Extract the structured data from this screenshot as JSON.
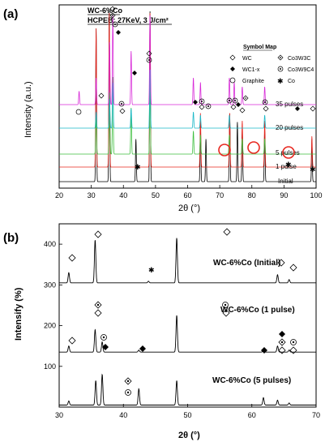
{
  "panel_a": {
    "label": "(a)",
    "title_line1": "WC-6%Co",
    "title_line2": "HCPEB: 27KeV, 3 J/cm²",
    "ylabel": "Intensity (a.u.)",
    "xlabel": "2θ (°)",
    "legend_title": "Symbol Map",
    "legend": [
      {
        "symbol": "diamond-open",
        "text": "WC"
      },
      {
        "symbol": "diamond-dot",
        "text": "Co3W3C"
      },
      {
        "symbol": "diamond-filled",
        "text": "WC1-x"
      },
      {
        "symbol": "circle-dot",
        "text": "Co3W9C4"
      },
      {
        "symbol": "circle-open",
        "text": "Graphite"
      },
      {
        "symbol": "star",
        "text": "Co"
      }
    ],
    "trace_labels": [
      "35 pulses",
      "20 pulses",
      "5 pulses",
      "1 pulse",
      "Initial"
    ]
  },
  "panel_b": {
    "label": "(b)",
    "ylabel": "Intensify (%)",
    "xlabel": "2θ (°)",
    "trace_labels": [
      "WC-6%Co (Initial)",
      "WC-6%Co (1 pulse)",
      "WC-6%Co (5 pulses)"
    ]
  },
  "chart_data": [
    {
      "type": "line",
      "xlim": [
        20,
        100
      ],
      "x_ticks": [
        20,
        30,
        40,
        50,
        60,
        70,
        80,
        90,
        100
      ],
      "series": [
        {
          "name": "Initial",
          "color": "#000000",
          "peaks": [
            [
              31.5,
              0.9
            ],
            [
              35.6,
              1.0
            ],
            [
              43.9,
              0.25
            ],
            [
              48.3,
              1.0
            ],
            [
              64.0,
              0.35
            ],
            [
              65.7,
              0.25
            ],
            [
              73.1,
              0.4
            ],
            [
              75.5,
              0.35
            ],
            [
              77.0,
              0.3
            ],
            [
              84.0,
              0.3
            ],
            [
              98.7,
              0.25
            ]
          ]
        },
        {
          "name": "1 pulse",
          "color": "#e8271f",
          "peaks": [
            [
              31.5,
              0.9
            ],
            [
              35.6,
              1.0
            ],
            [
              48.3,
              1.0
            ],
            [
              64.0,
              0.35
            ],
            [
              73.1,
              0.35
            ],
            [
              77.0,
              0.3
            ],
            [
              84.0,
              0.3
            ],
            [
              98.7,
              0.2
            ]
          ]
        },
        {
          "name": "5 pulses",
          "color": "#3fbf3f",
          "peaks": [
            [
              31.5,
              0.5
            ],
            [
              35.7,
              0.8
            ],
            [
              36.7,
              1.0
            ],
            [
              42.4,
              0.6
            ],
            [
              48.3,
              0.8
            ],
            [
              61.8,
              0.3
            ],
            [
              64.0,
              0.25
            ],
            [
              73.0,
              0.25
            ],
            [
              77.0,
              0.2
            ],
            [
              84.0,
              0.2
            ]
          ]
        },
        {
          "name": "20 pulses",
          "color": "#1ab8c8",
          "peaks": [
            [
              31.5,
              0.25
            ],
            [
              35.7,
              0.45
            ],
            [
              36.7,
              0.7
            ],
            [
              42.4,
              0.3
            ],
            [
              48.3,
              0.9
            ],
            [
              61.8,
              0.25
            ],
            [
              64.0,
              0.2
            ],
            [
              73.0,
              0.2
            ],
            [
              84.0,
              0.2
            ]
          ]
        },
        {
          "name": "35 pulses",
          "color": "#d829d8",
          "peaks": [
            [
              26.2,
              0.15
            ],
            [
              31.5,
              0.3
            ],
            [
              35.7,
              0.7
            ],
            [
              36.7,
              1.0
            ],
            [
              42.4,
              0.6
            ],
            [
              48.3,
              1.0
            ],
            [
              61.8,
              0.3
            ],
            [
              64.0,
              0.25
            ],
            [
              73.0,
              0.3
            ],
            [
              74.5,
              0.25
            ],
            [
              77.0,
              0.2
            ],
            [
              84.0,
              0.2
            ]
          ]
        }
      ]
    },
    {
      "type": "line",
      "xlim": [
        30,
        70
      ],
      "ylim": [
        0,
        450
      ],
      "x_ticks": [
        30,
        40,
        50,
        60,
        70
      ],
      "y_ticks": [
        100,
        200,
        300,
        400
      ],
      "series": [
        {
          "name": "WC-6%Co (Initial)",
          "offset": 300,
          "peaks": [
            [
              31.5,
              25
            ],
            [
              35.6,
              105
            ],
            [
              43.9,
              4
            ],
            [
              48.3,
              110
            ],
            [
              64.0,
              20
            ],
            [
              65.8,
              8
            ]
          ]
        },
        {
          "name": "WC-6%Co (1 pulse)",
          "offset": 130,
          "peaks": [
            [
              31.5,
              15
            ],
            [
              35.6,
              55
            ],
            [
              36.7,
              25
            ],
            [
              42.4,
              5
            ],
            [
              48.3,
              90
            ],
            [
              61.8,
              5
            ],
            [
              64.0,
              15
            ],
            [
              65.8,
              5
            ]
          ]
        },
        {
          "name": "WC-6%Co (5 pulses)",
          "offset": 0,
          "peaks": [
            [
              31.5,
              10
            ],
            [
              35.7,
              60
            ],
            [
              36.7,
              75
            ],
            [
              42.4,
              40
            ],
            [
              48.3,
              60
            ],
            [
              61.8,
              18
            ],
            [
              64.0,
              12
            ],
            [
              65.8,
              5
            ]
          ]
        }
      ]
    }
  ]
}
